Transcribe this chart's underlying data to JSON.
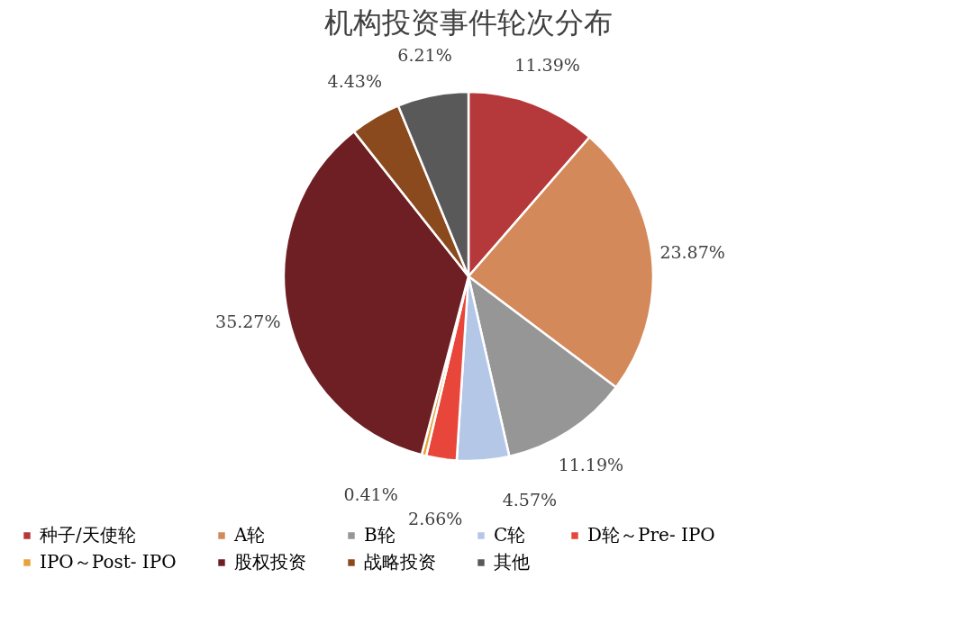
{
  "chart_data": {
    "type": "pie",
    "title": "机构投资事件轮次分布",
    "categories": [
      "种子/天使轮",
      "A轮",
      "B轮",
      "C轮",
      "D轮～Pre- IPO",
      "IPO～Post- IPO",
      "股权投资",
      "战略投资",
      "其他"
    ],
    "values": [
      11.39,
      23.87,
      11.19,
      4.57,
      2.66,
      0.41,
      35.27,
      4.43,
      6.21
    ],
    "value_labels": [
      "11.39%",
      "23.87%",
      "11.19%",
      "4.57%",
      "2.66%",
      "0.41%",
      "35.27%",
      "4.43%",
      "6.21%"
    ],
    "colors": [
      "#b5393b",
      "#d4895a",
      "#969696",
      "#b4c7e7",
      "#e8463a",
      "#e8a23a",
      "#6e1f23",
      "#8b4a1e",
      "#595959"
    ],
    "legend": "bottom"
  }
}
